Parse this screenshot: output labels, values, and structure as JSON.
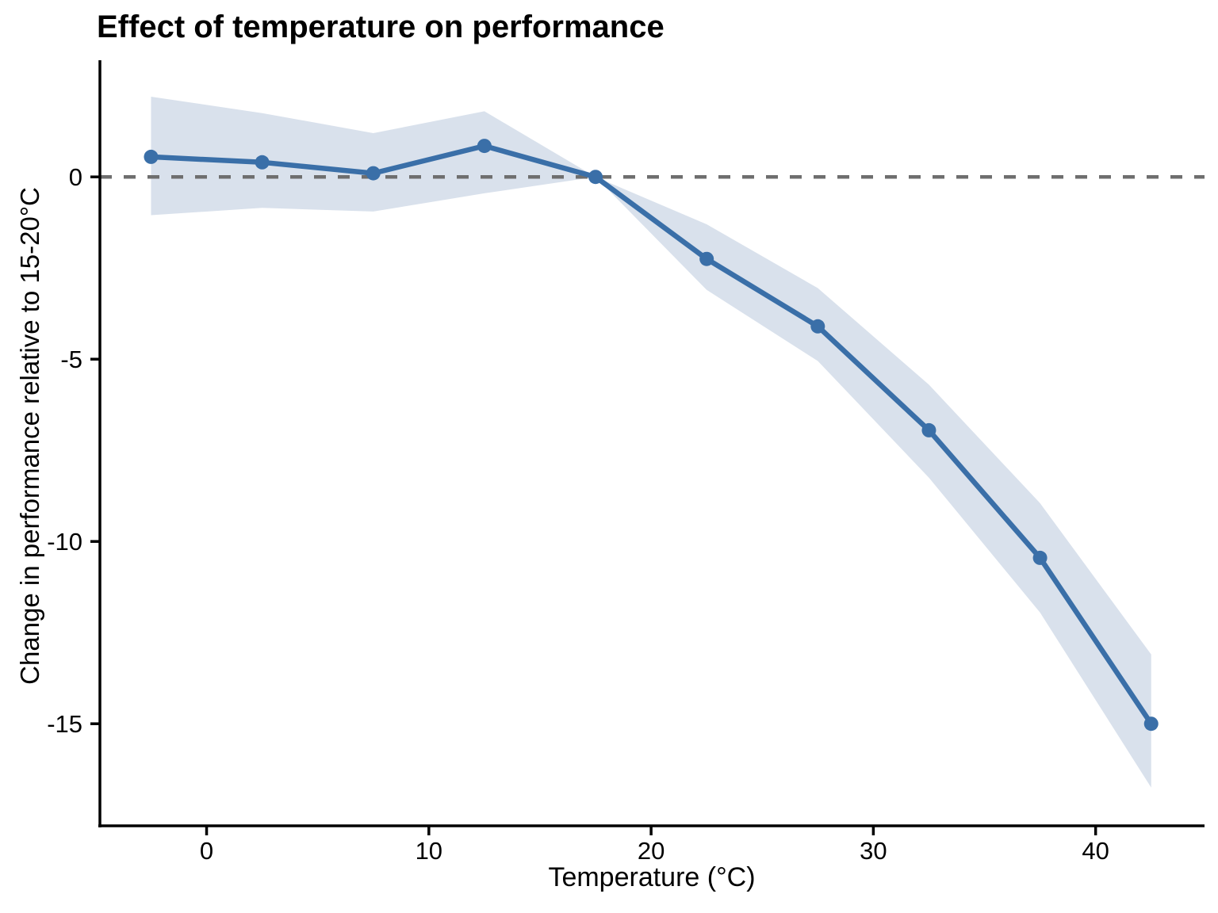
{
  "chart_data": {
    "type": "line",
    "title": "Effect of temperature on performance",
    "xlabel": "Temperature (°C)",
    "ylabel": "Change in performance relative to 15-20°C",
    "x": [
      -2.5,
      2.5,
      7.5,
      12.5,
      17.5,
      22.5,
      27.5,
      32.5,
      37.5,
      42.5
    ],
    "series": [
      {
        "name": "change-in-performance",
        "values": [
          0.55,
          0.4,
          0.1,
          0.85,
          0.0,
          -2.25,
          -4.1,
          -6.95,
          -10.45,
          -15.0
        ]
      }
    ],
    "ci_upper": [
      2.2,
      1.75,
      1.2,
      1.8,
      0.0,
      -1.3,
      -3.05,
      -5.7,
      -8.95,
      -13.1
    ],
    "ci_lower": [
      -1.05,
      -0.85,
      -0.95,
      -0.45,
      0.0,
      -3.1,
      -5.05,
      -8.25,
      -11.95,
      -16.75
    ],
    "x_ticks": [
      0,
      10,
      20,
      30,
      40
    ],
    "y_ticks": [
      0,
      -5,
      -10,
      -15
    ],
    "xlim": [
      -4.8,
      44.9
    ],
    "ylim": [
      -17.8,
      3.2
    ],
    "reference_line_y": 0,
    "grid": "off",
    "legend": "none",
    "colors": {
      "line": "#3a6fa8",
      "band": "#d9e1ec",
      "reference": "#6e6e6e",
      "axis": "#000000"
    }
  }
}
